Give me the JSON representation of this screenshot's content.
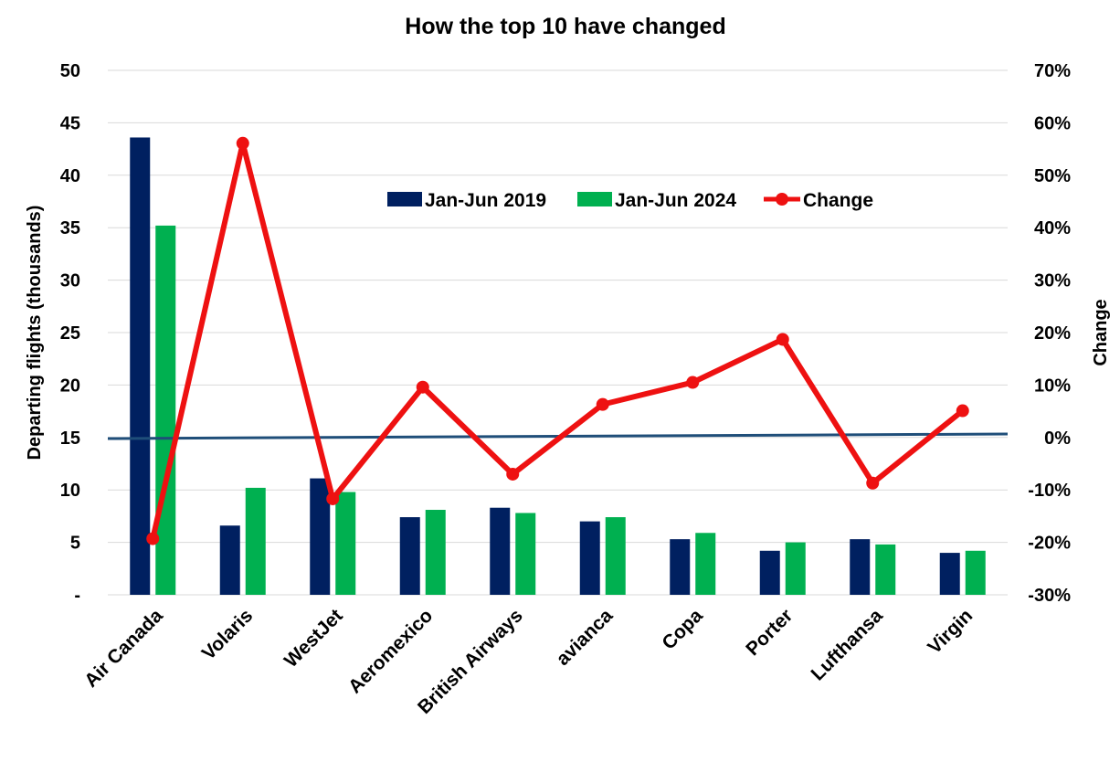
{
  "chart_data": {
    "type": "bar",
    "title": "How the top 10 have changed",
    "ylabel": "Departing flights (thousands)",
    "y2label": "Change",
    "ylim": [
      0,
      50
    ],
    "y2lim": [
      -30,
      70
    ],
    "y_ticks": [
      "-",
      "5",
      "10",
      "15",
      "20",
      "25",
      "30",
      "35",
      "40",
      "45",
      "50"
    ],
    "y2_ticks": [
      "-30%",
      "-20%",
      "-10%",
      "0%",
      "10%",
      "20%",
      "30%",
      "40%",
      "50%",
      "60%",
      "70%"
    ],
    "categories": [
      "Air Canada",
      "Volaris",
      "WestJet",
      "Aeromexico",
      "British Airways",
      "avianca",
      "Copa",
      "Porter",
      "Lufthansa",
      "Virgin"
    ],
    "series": [
      {
        "name": "Jan-Jun 2019",
        "type": "bar",
        "axis": "left",
        "color": "#002060",
        "values": [
          43.6,
          6.6,
          11.1,
          7.4,
          8.3,
          7.0,
          5.3,
          4.2,
          5.3,
          4.0
        ]
      },
      {
        "name": "Jan-Jun 2024",
        "type": "bar",
        "axis": "left",
        "color": "#00B050",
        "values": [
          35.2,
          10.2,
          9.8,
          8.1,
          7.8,
          7.4,
          5.9,
          5.0,
          4.8,
          4.2
        ]
      },
      {
        "name": "Change",
        "type": "line",
        "axis": "right",
        "color": "#EE1111",
        "values": [
          -19.3,
          56.1,
          -11.7,
          9.6,
          -7.0,
          6.3,
          10.5,
          18.7,
          -8.7,
          5.1
        ]
      }
    ],
    "zero_line_color": "#1F4E79",
    "grid": true,
    "legend_position": "upper-center"
  }
}
